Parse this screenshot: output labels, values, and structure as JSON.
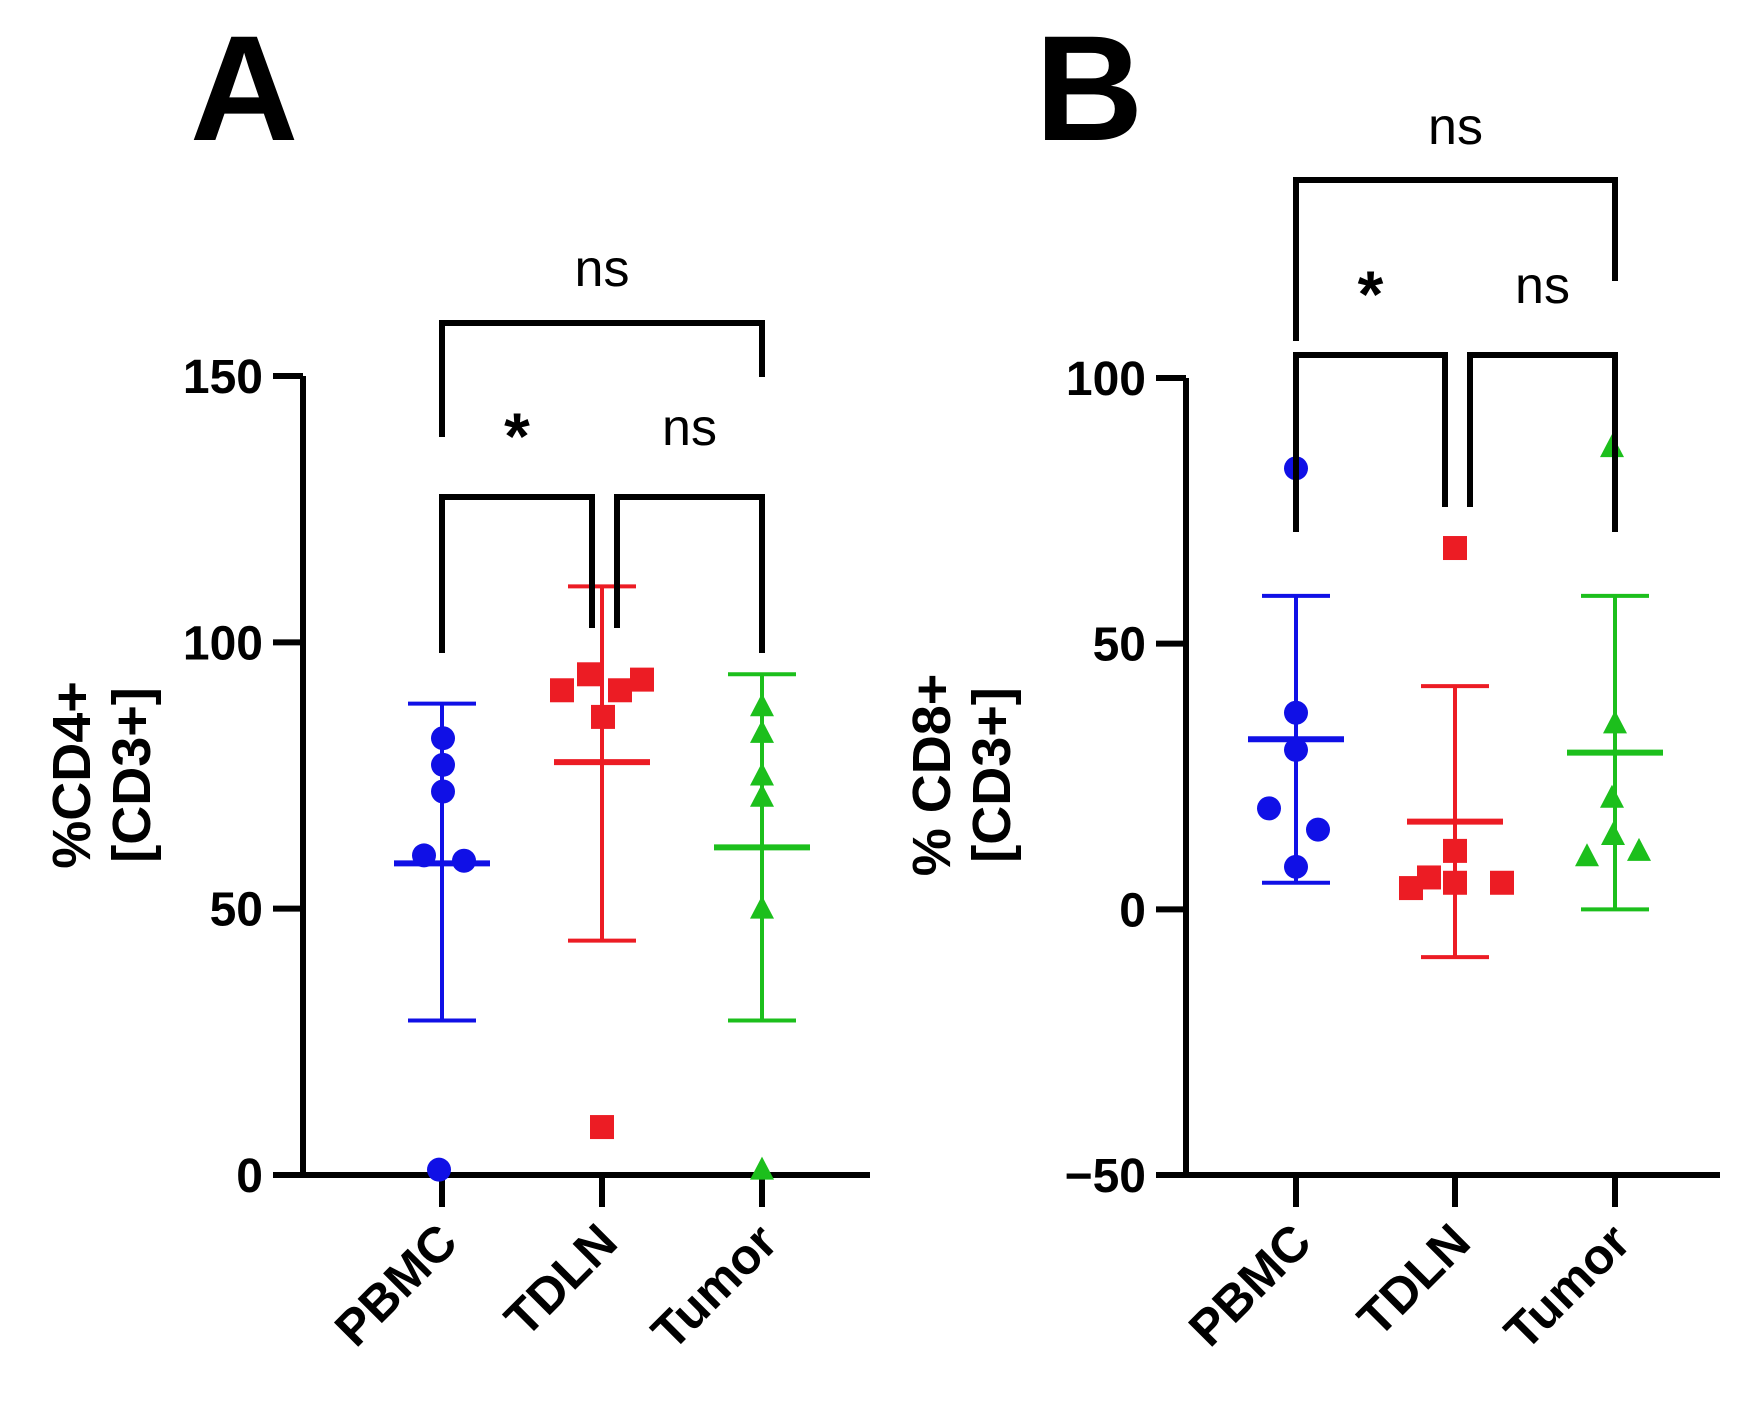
{
  "chart_data": [
    {
      "panel": "A",
      "type": "scatter",
      "ylabel_lines": [
        "%CD4+",
        "[CD3+]"
      ],
      "categories": [
        "PBMC",
        "TDLN",
        "Tumor"
      ],
      "ylim": [
        0,
        150
      ],
      "yticks": [
        0,
        50,
        100,
        150
      ],
      "series": [
        {
          "category": "PBMC",
          "marker": "circle",
          "color": "#1010e6",
          "values": [
            1,
            60,
            59,
            72,
            77,
            82
          ],
          "mean": 58.5,
          "sd_low": 29,
          "sd_high": 88.5
        },
        {
          "category": "TDLN",
          "marker": "square",
          "color": "#ec1c24",
          "values": [
            9,
            91,
            94,
            91,
            86,
            93
          ],
          "mean": 77.5,
          "sd_low": 44,
          "sd_high": 110.5
        },
        {
          "category": "Tumor",
          "marker": "triangle",
          "color": "#1cbf1c",
          "values": [
            1,
            50,
            71,
            75,
            83,
            88
          ],
          "mean": 61.5,
          "sd_low": 29,
          "sd_high": 94
        }
      ],
      "comparisons": [
        {
          "groups": [
            "PBMC",
            "TDLN"
          ],
          "label": "*"
        },
        {
          "groups": [
            "TDLN",
            "Tumor"
          ],
          "label": "ns"
        },
        {
          "groups": [
            "PBMC",
            "Tumor"
          ],
          "label": "ns"
        }
      ]
    },
    {
      "panel": "B",
      "type": "scatter",
      "ylabel_lines": [
        "% CD8+",
        "[CD3+]"
      ],
      "categories": [
        "PBMC",
        "TDLN",
        "Tumor"
      ],
      "ylim": [
        -50,
        100
      ],
      "yticks": [
        -50,
        0,
        50,
        100
      ],
      "series": [
        {
          "category": "PBMC",
          "marker": "circle",
          "color": "#1010e6",
          "values": [
            8,
            15,
            19,
            30,
            37,
            83
          ],
          "mean": 32,
          "sd_low": 5,
          "sd_high": 59
        },
        {
          "category": "TDLN",
          "marker": "square",
          "color": "#ec1c24",
          "values": [
            4,
            6,
            5,
            5,
            11,
            68
          ],
          "mean": 16.5,
          "sd_low": -9,
          "sd_high": 42
        },
        {
          "category": "Tumor",
          "marker": "triangle",
          "color": "#1cbf1c",
          "values": [
            10,
            11,
            14,
            21,
            35,
            87
          ],
          "mean": 29.5,
          "sd_low": 0,
          "sd_high": 59
        }
      ],
      "comparisons": [
        {
          "groups": [
            "PBMC",
            "TDLN"
          ],
          "label": "*"
        },
        {
          "groups": [
            "TDLN",
            "Tumor"
          ],
          "label": "ns"
        },
        {
          "groups": [
            "PBMC",
            "Tumor"
          ],
          "label": "ns"
        }
      ]
    }
  ]
}
